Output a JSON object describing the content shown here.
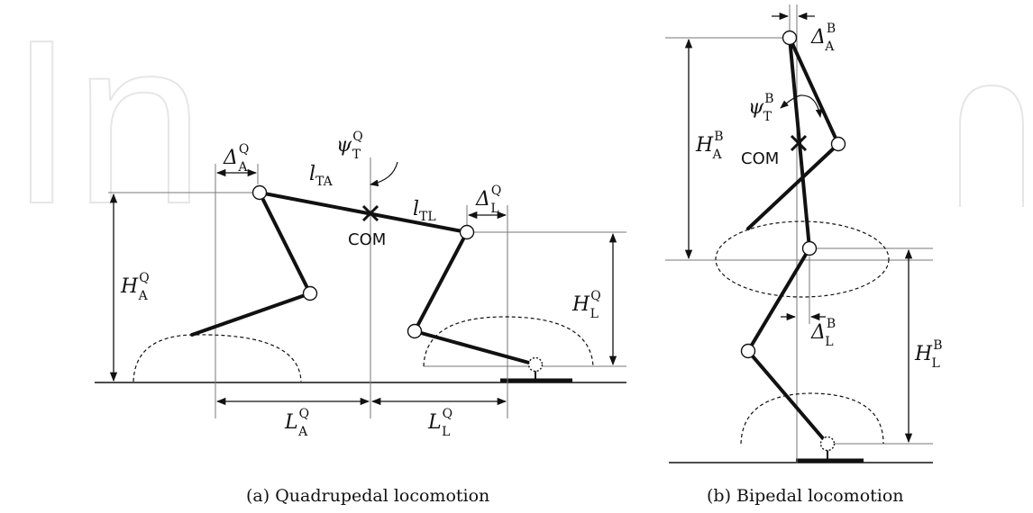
{
  "watermark": "In",
  "quadrupedal": {
    "delta_A": {
      "base": "Δ",
      "sup": "Q",
      "sub": "A"
    },
    "delta_L": {
      "base": "Δ",
      "sup": "Q",
      "sub": "L"
    },
    "l_TA": {
      "base": "l",
      "sub": "TA"
    },
    "l_TL": {
      "base": "l",
      "sub": "TL"
    },
    "psi_T": {
      "base": "ψ",
      "sup": "Q",
      "sub": "T"
    },
    "com": "COM",
    "H_A": {
      "base": "H",
      "sup": "Q",
      "sub": "A"
    },
    "H_L": {
      "base": "H",
      "sup": "Q",
      "sub": "L"
    },
    "L_A": {
      "base": "L",
      "sup": "Q",
      "sub": "A"
    },
    "L_L": {
      "base": "L",
      "sup": "Q",
      "sub": "L"
    },
    "caption": "(a) Quadrupedal locomotion"
  },
  "bipedal": {
    "delta_A": {
      "base": "Δ",
      "sup": "B",
      "sub": "A"
    },
    "delta_L": {
      "base": "Δ",
      "sup": "B",
      "sub": "L"
    },
    "psi_T": {
      "base": "ψ",
      "sup": "B",
      "sub": "T"
    },
    "com": "COM",
    "H_A": {
      "base": "H",
      "sup": "B",
      "sub": "A"
    },
    "H_L": {
      "base": "H",
      "sup": "B",
      "sub": "L"
    },
    "caption": "(b) Bipedal locomotion"
  }
}
